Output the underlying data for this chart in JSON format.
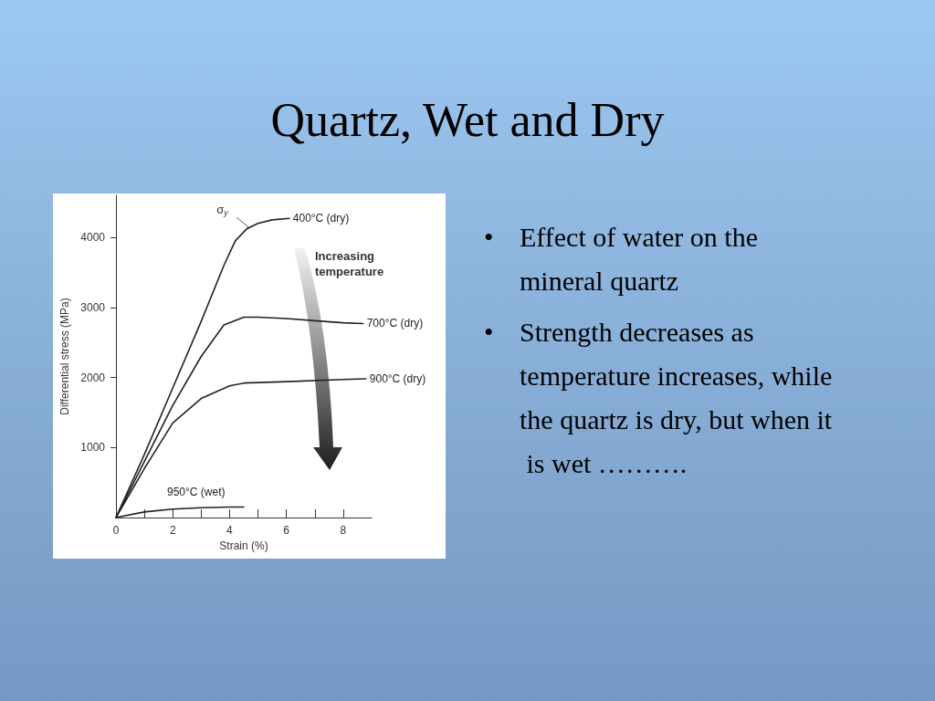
{
  "chart_data": {
    "type": "line",
    "title": "Quartz, Wet and Dry",
    "xlabel": "Strain (%)",
    "ylabel": "Differential stress (MPa)",
    "xlim": [
      0,
      9
    ],
    "xticks": [
      0,
      {
        "value": 1,
        "label": null
      },
      2,
      {
        "value": 3,
        "label": null
      },
      4,
      {
        "value": 5,
        "label": null
      },
      6,
      {
        "value": 7,
        "label": null
      },
      8
    ],
    "ylim": [
      0,
      4600
    ],
    "yticks": [
      1000,
      2000,
      3000,
      4000
    ],
    "grid": false,
    "legend": false,
    "marker": "none",
    "line_style": "solid",
    "series": [
      {
        "name": "400°C (dry)",
        "color": "#222222",
        "x": [
          0,
          1,
          2,
          3,
          3.8,
          4.2,
          4.6,
          5,
          5.5,
          6.1
        ],
        "values": [
          0,
          900,
          1850,
          2800,
          3600,
          3950,
          4120,
          4200,
          4250,
          4270
        ]
      },
      {
        "name": "700°C (dry)",
        "color": "#222222",
        "x": [
          0,
          1,
          2,
          3,
          3.8,
          4.5,
          5,
          6,
          7,
          8,
          8.7
        ],
        "values": [
          0,
          800,
          1600,
          2300,
          2750,
          2860,
          2860,
          2840,
          2810,
          2780,
          2770
        ]
      },
      {
        "name": "900°C (dry)",
        "color": "#222222",
        "x": [
          0,
          1,
          2,
          3,
          4,
          4.5,
          6,
          8,
          8.8
        ],
        "values": [
          0,
          700,
          1350,
          1700,
          1880,
          1920,
          1940,
          1970,
          1980
        ]
      },
      {
        "name": "950°C (wet)",
        "color": "#222222",
        "x": [
          0,
          1,
          2,
          3,
          4,
          4.5
        ],
        "values": [
          0,
          80,
          120,
          140,
          150,
          150
        ]
      }
    ],
    "annotations": [
      {
        "text": "σ$_{y}$",
        "x": 4.7,
        "y": 4130
      },
      "Increasing temperature",
      "• Effect of water on the mineral quartz",
      "• Strength decreases as temperature increases, while the quartz is dry, but when it is wet ………."
    ]
  }
}
